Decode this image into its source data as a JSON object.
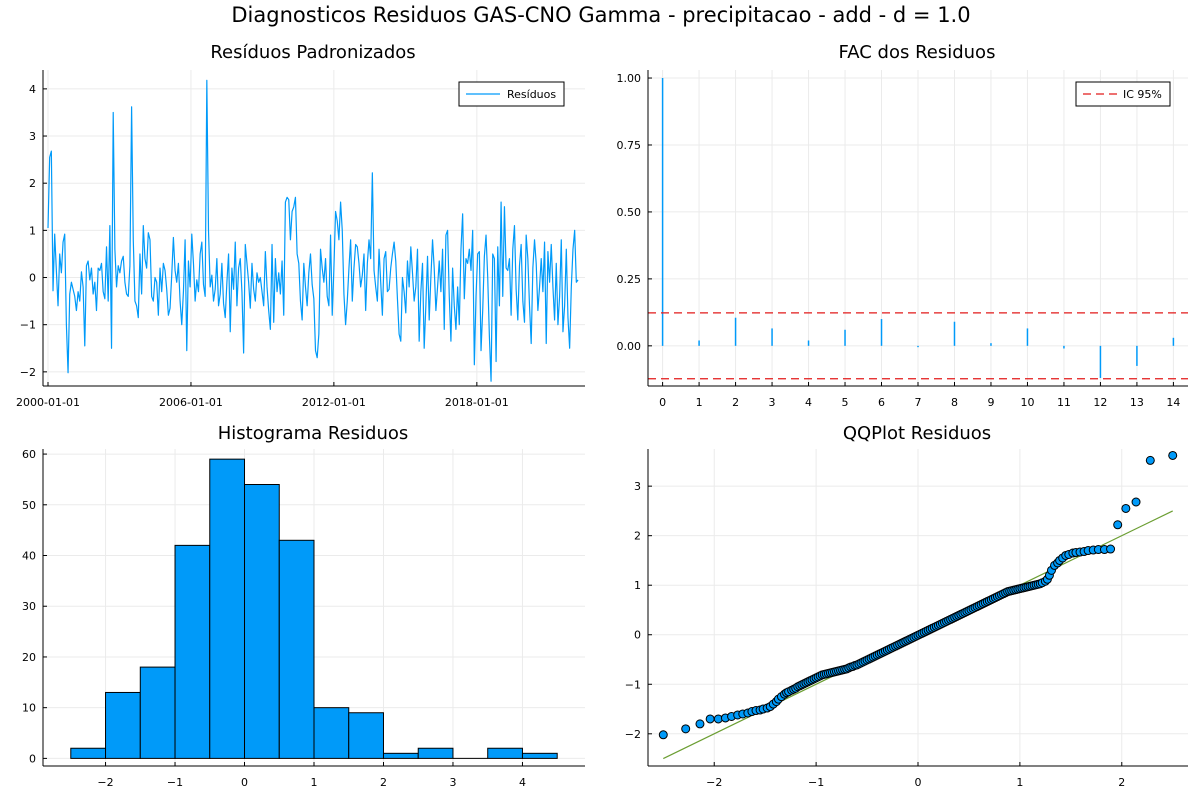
{
  "suptitle": "Diagnosticos Residuos  GAS-CNO Gamma - precipitacao - add - d = 1.0",
  "colors": {
    "series": "#009AF9",
    "band": "#E21A1A",
    "qqline": "#6B9E32",
    "axis": "#000000",
    "grid": "#ebebeb"
  },
  "chart_data": [
    {
      "type": "line",
      "title": "Resíduos Padronizados",
      "legend": {
        "label": "Resíduos",
        "position": "top-right"
      },
      "x_ticks": [
        "2000-01-01",
        "2006-01-01",
        "2012-01-01",
        "2018-01-01"
      ],
      "x_range": [
        "2000-01-01",
        "2022-04-01"
      ],
      "y_ticks": [
        -2,
        -1,
        0,
        1,
        2,
        3,
        4
      ],
      "ylim": [
        -2.3,
        4.4
      ],
      "grid": true,
      "x_start": "2000-01-01",
      "frequency": "monthly",
      "values": [
        1.05,
        2.55,
        2.68,
        -0.28,
        0.92,
        0.15,
        -0.6,
        0.5,
        0.1,
        0.75,
        0.92,
        -1.0,
        -2.02,
        -0.35,
        -0.1,
        -0.25,
        -0.4,
        -0.7,
        -0.3,
        -0.5,
        0.12,
        -0.2,
        -1.45,
        0.25,
        0.35,
        -0.05,
        0.2,
        -0.35,
        -0.1,
        -0.7,
        0.2,
        0.15,
        0.3,
        -0.3,
        -0.45,
        0.65,
        -0.5,
        1.1,
        -1.5,
        3.5,
        0.6,
        -0.2,
        0.25,
        0.1,
        0.35,
        0.45,
        -0.1,
        -0.35,
        -0.4,
        0.25,
        3.62,
        0.8,
        -0.5,
        -0.6,
        -0.85,
        0.5,
        -0.35,
        1.1,
        0.4,
        0.2,
        0.95,
        0.8,
        -0.4,
        -0.5,
        0.0,
        -0.1,
        -0.8,
        0.2,
        -0.3,
        0.3,
        0.15,
        -0.25,
        -0.8,
        -0.65,
        0.05,
        0.85,
        0.15,
        -0.1,
        0.3,
        -0.5,
        -1.0,
        -0.3,
        0.8,
        -1.55,
        0.35,
        -0.2,
        0.92,
        0.3,
        -0.5,
        -0.05,
        -0.3,
        0.5,
        0.75,
        -0.15,
        -0.4,
        4.18,
        1.0,
        -0.2,
        0.05,
        -0.5,
        -0.25,
        0.4,
        -0.6,
        -0.35,
        0.3,
        -0.55,
        -0.85,
        -0.1,
        0.5,
        -1.15,
        0.2,
        -0.25,
        0.75,
        -0.6,
        0.2,
        0.4,
        -0.3,
        -1.6,
        0.7,
        0.3,
        -0.1,
        -0.65,
        0.3,
        -0.25,
        -0.5,
        0.1,
        -0.1,
        0.0,
        -0.3,
        -0.6,
        0.55,
        -0.2,
        -0.7,
        -1.1,
        0.7,
        -0.95,
        0.4,
        -0.3,
        0.1,
        -0.35,
        0.35,
        -0.8,
        1.6,
        1.7,
        1.65,
        0.8,
        1.4,
        1.5,
        1.7,
        0.5,
        0.3,
        -0.5,
        -0.9,
        0.3,
        -0.2,
        -0.6,
        0.1,
        0.5,
        -0.15,
        -0.45,
        -1.55,
        -1.7,
        -1.2,
        0.6,
        0.2,
        -0.1,
        0.4,
        -0.4,
        -0.6,
        0.9,
        -0.8,
        0.2,
        1.4,
        1.2,
        0.8,
        1.6,
        1.0,
        -0.35,
        -1.0,
        -0.5,
        0.2,
        0.8,
        -0.5,
        0.2,
        0.7,
        0.65,
        0.3,
        -0.2,
        0.05,
        0.5,
        -0.7,
        0.3,
        0.8,
        0.4,
        2.22,
        0.15,
        -0.2,
        -0.5,
        0.6,
        -0.1,
        -0.8,
        0.4,
        0.55,
        -0.3,
        -0.25,
        0.2,
        0.5,
        0.75,
        0.35,
        -0.45,
        -1.2,
        -1.35,
        0.0,
        -0.3,
        -0.75,
        0.35,
        -0.2,
        0.65,
        0.1,
        -0.5,
        -0.2,
        0.6,
        -1.35,
        -0.3,
        0.3,
        -1.5,
        -0.6,
        0.45,
        -0.9,
        0.0,
        0.8,
        0.2,
        -0.7,
        -0.2,
        0.35,
        -0.3,
        0.6,
        -1.1,
        0.9,
        1.0,
        -0.4,
        -1.35,
        0.2,
        -0.6,
        -1.1,
        -0.2,
        -1.0,
        0.6,
        1.35,
        -0.45,
        0.4,
        0.3,
        0.6,
        0.15,
        1.0,
        -1.85,
        -0.4,
        0.5,
        0.55,
        -1.55,
        -0.7,
        0.45,
        0.9,
        0.0,
        -1.25,
        -2.2,
        0.5,
        0.4,
        -1.78,
        0.65,
        -0.6,
        1.6,
        -0.4,
        1.5,
        0.2,
        0.15,
        0.4,
        -0.8,
        0.6,
        1.1,
        -0.25,
        -0.9,
        0.25,
        0.7,
        -0.5,
        -0.95,
        0.9,
        0.4,
        -0.6,
        -1.4,
        0.2,
        0.8,
        0.3,
        -0.7,
        -0.2,
        0.4,
        -0.3,
        0.75,
        -1.4,
        0.55,
        -0.1,
        0.7,
        -0.2,
        -0.9,
        0.3,
        -1.0,
        -0.4,
        0.8,
        -1.15,
        -0.6,
        0.6,
        -0.85,
        -1.5,
        -0.2,
        0.6,
        1.0,
        -0.1,
        -0.05
      ]
    },
    {
      "type": "bar",
      "title": "FAC dos Residuos",
      "legend": {
        "label": "IC 95%",
        "position": "top-right"
      },
      "x": [
        0,
        1,
        2,
        3,
        4,
        5,
        6,
        7,
        8,
        9,
        10,
        11,
        12,
        13,
        14
      ],
      "values": [
        1.0,
        0.02,
        0.105,
        0.065,
        0.02,
        0.06,
        0.1,
        -0.005,
        0.09,
        0.01,
        0.065,
        -0.01,
        -0.12,
        -0.075,
        0.03
      ],
      "confidence_band": [
        -0.123,
        0.123
      ],
      "x_ticks": [
        0,
        1,
        2,
        3,
        4,
        5,
        6,
        7,
        8,
        9,
        10,
        11,
        12,
        13,
        14
      ],
      "y_ticks": [
        0.0,
        0.25,
        0.5,
        0.75,
        1.0
      ],
      "xlim": [
        -0.4,
        14.4
      ],
      "ylim": [
        -0.15,
        1.03
      ],
      "grid": true
    },
    {
      "type": "bar",
      "title": "Histograma Residuos",
      "bin_edges": [
        -2.5,
        -2,
        -1.5,
        -1,
        -0.5,
        0,
        0.5,
        1,
        1.5,
        2,
        2.5,
        3,
        3.5,
        4,
        4.5
      ],
      "counts": [
        2,
        13,
        18,
        42,
        59,
        54,
        43,
        10,
        9,
        1,
        2,
        0,
        2,
        1
      ],
      "x_ticks": [
        -2,
        -1,
        0,
        1,
        2,
        3,
        4
      ],
      "y_ticks": [
        0,
        10,
        20,
        30,
        40,
        50,
        60
      ],
      "xlim": [
        -2.9,
        4.9
      ],
      "ylim": [
        -1.5,
        61
      ],
      "grid": true
    },
    {
      "type": "scatter",
      "title": "QQPlot Residuos",
      "x_ticks": [
        -2,
        -1,
        0,
        1,
        2
      ],
      "y_ticks": [
        -2,
        -1,
        0,
        1,
        2,
        3
      ],
      "xlim": [
        -2.65,
        2.65
      ],
      "ylim": [
        -2.65,
        3.75
      ],
      "reference_line": [
        [
          -2.5,
          -2.5
        ],
        [
          2.5,
          2.5
        ]
      ],
      "grid": true,
      "points": [
        [
          -2.5,
          -2.02
        ],
        [
          -2.28,
          -1.9
        ],
        [
          -2.14,
          -1.8
        ],
        [
          -2.04,
          -1.7
        ],
        [
          -1.96,
          -1.7
        ],
        [
          -1.89,
          -1.68
        ],
        [
          -1.83,
          -1.65
        ],
        [
          -1.77,
          -1.62
        ],
        [
          -1.72,
          -1.6
        ],
        [
          -1.67,
          -1.58
        ],
        [
          -1.63,
          -1.55
        ],
        [
          -1.59,
          -1.53
        ],
        [
          -1.55,
          -1.52
        ],
        [
          -1.52,
          -1.5
        ],
        [
          -1.48,
          -1.48
        ],
        [
          -1.45,
          -1.45
        ],
        [
          -1.42,
          -1.4
        ],
        [
          -1.39,
          -1.35
        ],
        [
          -1.37,
          -1.3
        ],
        [
          -1.34,
          -1.25
        ],
        [
          -1.31,
          -1.2
        ],
        [
          -1.29,
          -1.17
        ],
        [
          -1.27,
          -1.15
        ],
        [
          -1.24,
          -1.12
        ],
        [
          -1.22,
          -1.1
        ],
        [
          -1.2,
          -1.08
        ],
        [
          -1.18,
          -1.05
        ],
        [
          -1.16,
          -1.03
        ],
        [
          -1.14,
          -1.01
        ],
        [
          -1.12,
          -0.99
        ],
        [
          -1.1,
          -0.97
        ],
        [
          -1.08,
          -0.95
        ],
        [
          -1.06,
          -0.93
        ],
        [
          -1.04,
          -0.91
        ],
        [
          -1.02,
          -0.89
        ],
        [
          -1.0,
          -0.87
        ],
        [
          -0.98,
          -0.85
        ],
        [
          -0.96,
          -0.83
        ],
        [
          -0.94,
          -0.81
        ],
        [
          -0.92,
          -0.8
        ],
        [
          -0.9,
          -0.79
        ],
        [
          -0.88,
          -0.78
        ],
        [
          -0.86,
          -0.77
        ],
        [
          -0.84,
          -0.76
        ],
        [
          -0.82,
          -0.75
        ],
        [
          -0.8,
          -0.74
        ],
        [
          -0.78,
          -0.73
        ],
        [
          -0.76,
          -0.72
        ],
        [
          -0.74,
          -0.71
        ],
        [
          -0.72,
          -0.7
        ],
        [
          -0.7,
          -0.69
        ],
        [
          -0.68,
          -0.67
        ],
        [
          -0.66,
          -0.65
        ],
        [
          -0.64,
          -0.64
        ],
        [
          -0.62,
          -0.62
        ],
        [
          -0.6,
          -0.61
        ],
        [
          -0.58,
          -0.59
        ],
        [
          -0.56,
          -0.57
        ],
        [
          -0.54,
          -0.55
        ],
        [
          -0.52,
          -0.53
        ],
        [
          -0.5,
          -0.51
        ],
        [
          -0.48,
          -0.49
        ],
        [
          -0.46,
          -0.47
        ],
        [
          -0.44,
          -0.45
        ],
        [
          -0.42,
          -0.43
        ],
        [
          -0.4,
          -0.41
        ],
        [
          -0.38,
          -0.39
        ],
        [
          -0.36,
          -0.37
        ],
        [
          -0.34,
          -0.35
        ],
        [
          -0.32,
          -0.33
        ],
        [
          -0.3,
          -0.31
        ],
        [
          -0.28,
          -0.29
        ],
        [
          -0.26,
          -0.27
        ],
        [
          -0.24,
          -0.25
        ],
        [
          -0.22,
          -0.23
        ],
        [
          -0.2,
          -0.21
        ],
        [
          -0.18,
          -0.19
        ],
        [
          -0.16,
          -0.17
        ],
        [
          -0.14,
          -0.15
        ],
        [
          -0.12,
          -0.13
        ],
        [
          -0.1,
          -0.11
        ],
        [
          -0.08,
          -0.09
        ],
        [
          -0.06,
          -0.07
        ],
        [
          -0.04,
          -0.05
        ],
        [
          -0.02,
          -0.03
        ],
        [
          0.0,
          -0.01
        ],
        [
          0.02,
          0.01
        ],
        [
          0.04,
          0.03
        ],
        [
          0.06,
          0.05
        ],
        [
          0.08,
          0.07
        ],
        [
          0.1,
          0.09
        ],
        [
          0.12,
          0.11
        ],
        [
          0.14,
          0.13
        ],
        [
          0.16,
          0.15
        ],
        [
          0.18,
          0.17
        ],
        [
          0.2,
          0.19
        ],
        [
          0.22,
          0.21
        ],
        [
          0.24,
          0.23
        ],
        [
          0.26,
          0.25
        ],
        [
          0.28,
          0.27
        ],
        [
          0.3,
          0.29
        ],
        [
          0.32,
          0.31
        ],
        [
          0.34,
          0.33
        ],
        [
          0.36,
          0.35
        ],
        [
          0.38,
          0.37
        ],
        [
          0.4,
          0.39
        ],
        [
          0.42,
          0.41
        ],
        [
          0.44,
          0.43
        ],
        [
          0.46,
          0.45
        ],
        [
          0.48,
          0.47
        ],
        [
          0.5,
          0.49
        ],
        [
          0.52,
          0.51
        ],
        [
          0.54,
          0.53
        ],
        [
          0.56,
          0.55
        ],
        [
          0.58,
          0.57
        ],
        [
          0.6,
          0.59
        ],
        [
          0.62,
          0.61
        ],
        [
          0.64,
          0.63
        ],
        [
          0.66,
          0.65
        ],
        [
          0.68,
          0.67
        ],
        [
          0.7,
          0.69
        ],
        [
          0.72,
          0.71
        ],
        [
          0.74,
          0.73
        ],
        [
          0.76,
          0.75
        ],
        [
          0.78,
          0.77
        ],
        [
          0.8,
          0.79
        ],
        [
          0.82,
          0.81
        ],
        [
          0.84,
          0.83
        ],
        [
          0.86,
          0.85
        ],
        [
          0.88,
          0.87
        ],
        [
          0.9,
          0.88
        ],
        [
          0.92,
          0.89
        ],
        [
          0.94,
          0.9
        ],
        [
          0.96,
          0.91
        ],
        [
          0.98,
          0.92
        ],
        [
          1.0,
          0.93
        ],
        [
          1.02,
          0.94
        ],
        [
          1.04,
          0.95
        ],
        [
          1.06,
          0.96
        ],
        [
          1.08,
          0.97
        ],
        [
          1.1,
          0.98
        ],
        [
          1.12,
          0.99
        ],
        [
          1.14,
          1.0
        ],
        [
          1.16,
          1.01
        ],
        [
          1.18,
          1.02
        ],
        [
          1.2,
          1.03
        ],
        [
          1.22,
          1.05
        ],
        [
          1.25,
          1.08
        ],
        [
          1.27,
          1.12
        ],
        [
          1.29,
          1.2
        ],
        [
          1.31,
          1.3
        ],
        [
          1.34,
          1.4
        ],
        [
          1.37,
          1.45
        ],
        [
          1.39,
          1.5
        ],
        [
          1.42,
          1.55
        ],
        [
          1.45,
          1.6
        ],
        [
          1.48,
          1.62
        ],
        [
          1.52,
          1.65
        ],
        [
          1.55,
          1.66
        ],
        [
          1.59,
          1.67
        ],
        [
          1.63,
          1.68
        ],
        [
          1.67,
          1.7
        ],
        [
          1.72,
          1.71
        ],
        [
          1.77,
          1.72
        ],
        [
          1.83,
          1.72
        ],
        [
          1.89,
          1.73
        ],
        [
          1.96,
          2.22
        ],
        [
          2.04,
          2.55
        ],
        [
          2.14,
          2.68
        ],
        [
          2.28,
          3.52
        ],
        [
          2.5,
          3.62
        ]
      ]
    }
  ]
}
